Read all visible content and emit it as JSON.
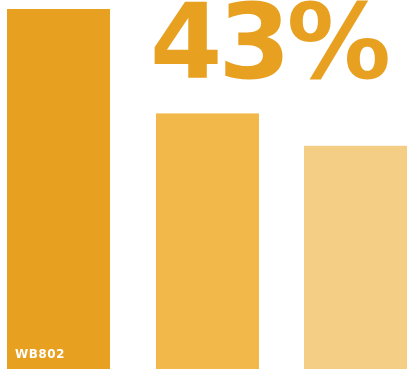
{
  "headline": {
    "text": "43%",
    "color": "#E8A021"
  },
  "chart_data": {
    "type": "bar",
    "categories": [
      "WB802",
      "",
      ""
    ],
    "values": [
      100,
      71,
      62
    ],
    "colors": [
      "#E8A021",
      "#F2B94A",
      "#F5CE85"
    ],
    "bar_label": "WB802",
    "title": "",
    "xlabel": "",
    "ylabel": "",
    "ylim": [
      0,
      100
    ],
    "grid": false
  }
}
